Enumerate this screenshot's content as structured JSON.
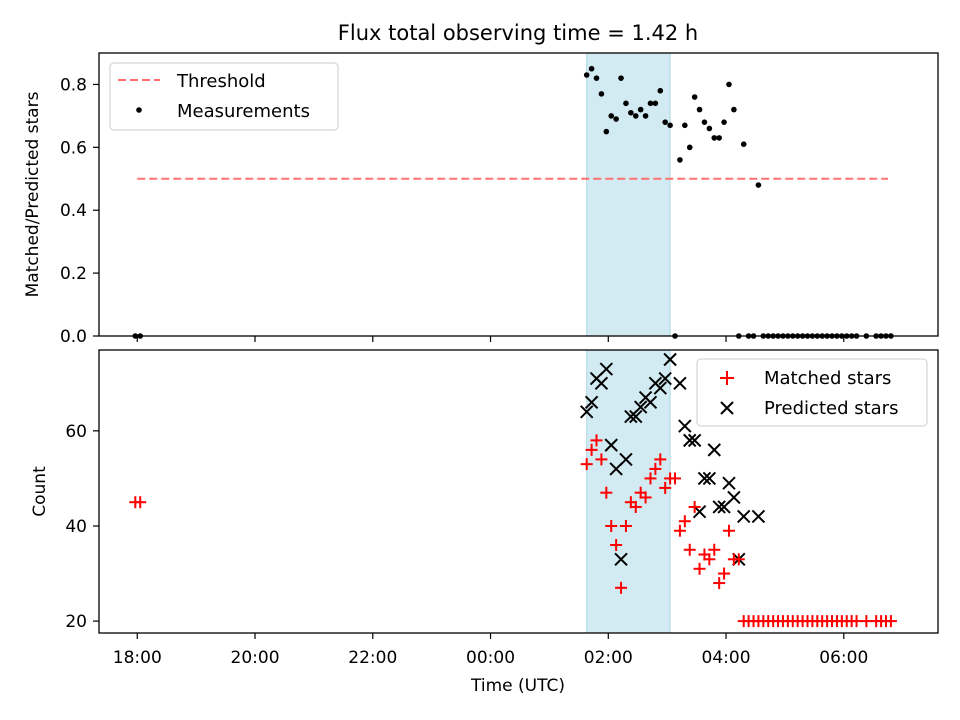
{
  "chart_data": [
    {
      "type": "scatter",
      "title": "Flux total observing time = 1.42 h",
      "xlabel": "",
      "ylabel": "Matched/Predicted stars",
      "xlim_hours": [
        -0.65,
        13.6
      ],
      "ylim": [
        0,
        0.9
      ],
      "yticks": [
        0.0,
        0.2,
        0.4,
        0.6,
        0.8
      ],
      "ytick_labels": [
        "0.0",
        "0.2",
        "0.4",
        "0.6",
        "0.8"
      ],
      "highlight_span": {
        "x_start": "01:38",
        "x_end": "03:03",
        "color": "#add8e6"
      },
      "legend": {
        "position": "upper left",
        "entries": [
          "Threshold",
          "Measurements"
        ]
      },
      "series": [
        {
          "name": "Threshold",
          "style": "dashed-line",
          "color": "#ff7070",
          "x": [
            "18:00",
            "06:45"
          ],
          "y": [
            0.5,
            0.5
          ]
        },
        {
          "name": "Measurements",
          "style": "dot",
          "color": "#000000",
          "x": [
            "17:58",
            "18:03",
            "01:38",
            "01:43",
            "01:48",
            "01:53",
            "01:58",
            "02:03",
            "02:08",
            "02:13",
            "02:18",
            "02:23",
            "02:28",
            "02:33",
            "02:38",
            "02:43",
            "02:48",
            "02:53",
            "02:58",
            "03:03",
            "03:08",
            "03:13",
            "03:18",
            "03:23",
            "03:28",
            "03:33",
            "03:38",
            "03:43",
            "03:48",
            "03:53",
            "03:58",
            "04:03",
            "04:08",
            "04:13",
            "04:18",
            "04:23",
            "04:28",
            "04:33",
            "04:38",
            "04:43",
            "04:48",
            "04:53",
            "04:58",
            "05:03",
            "05:08",
            "05:13",
            "05:18",
            "05:23",
            "05:28",
            "05:33",
            "05:38",
            "05:43",
            "05:48",
            "05:53",
            "05:58",
            "06:03",
            "06:08",
            "06:13",
            "06:23",
            "06:33",
            "06:38",
            "06:43",
            "06:48"
          ],
          "y": [
            0.0,
            0.0,
            0.83,
            0.85,
            0.82,
            0.77,
            0.65,
            0.7,
            0.69,
            0.82,
            0.74,
            0.71,
            0.7,
            0.72,
            0.7,
            0.74,
            0.74,
            0.78,
            0.68,
            0.67,
            0.0,
            0.56,
            0.67,
            0.6,
            0.76,
            0.72,
            0.68,
            0.66,
            0.63,
            0.63,
            0.68,
            0.8,
            0.72,
            0.0,
            0.61,
            0.0,
            0.0,
            0.48,
            0.0,
            0.0,
            0.0,
            0.0,
            0.0,
            0.0,
            0.0,
            0.0,
            0.0,
            0.0,
            0.0,
            0.0,
            0.0,
            0.0,
            0.0,
            0.0,
            0.0,
            0.0,
            0.0,
            0.0,
            0.0,
            0.0,
            0.0,
            0.0,
            0.0
          ]
        }
      ]
    },
    {
      "type": "scatter",
      "title": "",
      "xlabel": "Time (UTC)",
      "ylabel": "Count",
      "xlim_hours": [
        -0.65,
        13.6
      ],
      "ylim": [
        17.5,
        77.0
      ],
      "yticks": [
        20,
        40,
        60
      ],
      "ytick_labels": [
        "20",
        "40",
        "60"
      ],
      "xticks": [
        "18:00",
        "20:00",
        "22:00",
        "00:00",
        "02:00",
        "04:00",
        "06:00"
      ],
      "highlight_span": {
        "x_start": "01:38",
        "x_end": "03:03",
        "color": "#add8e6"
      },
      "legend": {
        "position": "upper right",
        "entries": [
          "Matched stars",
          "Predicted stars"
        ]
      },
      "series": [
        {
          "name": "Matched stars",
          "marker": "plus",
          "color": "#ff0000",
          "x": [
            "17:58",
            "18:03",
            "01:38",
            "01:43",
            "01:48",
            "01:53",
            "01:58",
            "02:03",
            "02:08",
            "02:13",
            "02:18",
            "02:23",
            "02:28",
            "02:33",
            "02:38",
            "02:43",
            "02:48",
            "02:53",
            "02:58",
            "03:03",
            "03:08",
            "03:13",
            "03:18",
            "03:23",
            "03:28",
            "03:33",
            "03:38",
            "03:43",
            "03:48",
            "03:53",
            "03:58",
            "04:03",
            "04:08",
            "04:13",
            "04:18",
            "04:23",
            "04:28",
            "04:33",
            "04:38",
            "04:43",
            "04:48",
            "04:53",
            "04:58",
            "05:03",
            "05:08",
            "05:13",
            "05:18",
            "05:23",
            "05:28",
            "05:33",
            "05:38",
            "05:43",
            "05:48",
            "05:53",
            "05:58",
            "06:03",
            "06:08",
            "06:13",
            "06:23",
            "06:33",
            "06:38",
            "06:43",
            "06:48"
          ],
          "y": [
            45,
            45,
            53,
            56,
            58,
            54,
            47,
            40,
            36,
            27,
            40,
            45,
            44,
            47,
            46,
            50,
            52,
            54,
            48,
            50,
            50,
            39,
            41,
            35,
            44,
            31,
            34,
            33,
            35,
            28,
            30,
            39,
            33,
            33,
            20,
            20,
            20,
            20,
            20,
            20,
            20,
            20,
            20,
            20,
            20,
            20,
            20,
            20,
            20,
            20,
            20,
            20,
            20,
            20,
            20,
            20,
            20,
            20,
            20,
            20,
            20,
            20,
            20
          ]
        },
        {
          "name": "Predicted stars",
          "marker": "x",
          "color": "#000000",
          "x": [
            "01:38",
            "01:43",
            "01:48",
            "01:53",
            "01:58",
            "02:03",
            "02:08",
            "02:13",
            "02:18",
            "02:23",
            "02:28",
            "02:33",
            "02:38",
            "02:43",
            "02:48",
            "02:53",
            "02:58",
            "03:03",
            "03:13",
            "03:18",
            "03:23",
            "03:28",
            "03:33",
            "03:38",
            "03:43",
            "03:48",
            "03:53",
            "03:58",
            "04:03",
            "04:08",
            "04:13",
            "04:18",
            "04:33"
          ],
          "y": [
            64,
            66,
            71,
            70,
            73,
            57,
            52,
            33,
            54,
            63,
            63,
            65,
            67,
            66,
            70,
            69,
            71,
            75,
            70,
            61,
            58,
            58,
            43,
            50,
            50,
            56,
            44,
            44,
            49,
            46,
            33,
            42,
            42
          ]
        }
      ]
    }
  ]
}
